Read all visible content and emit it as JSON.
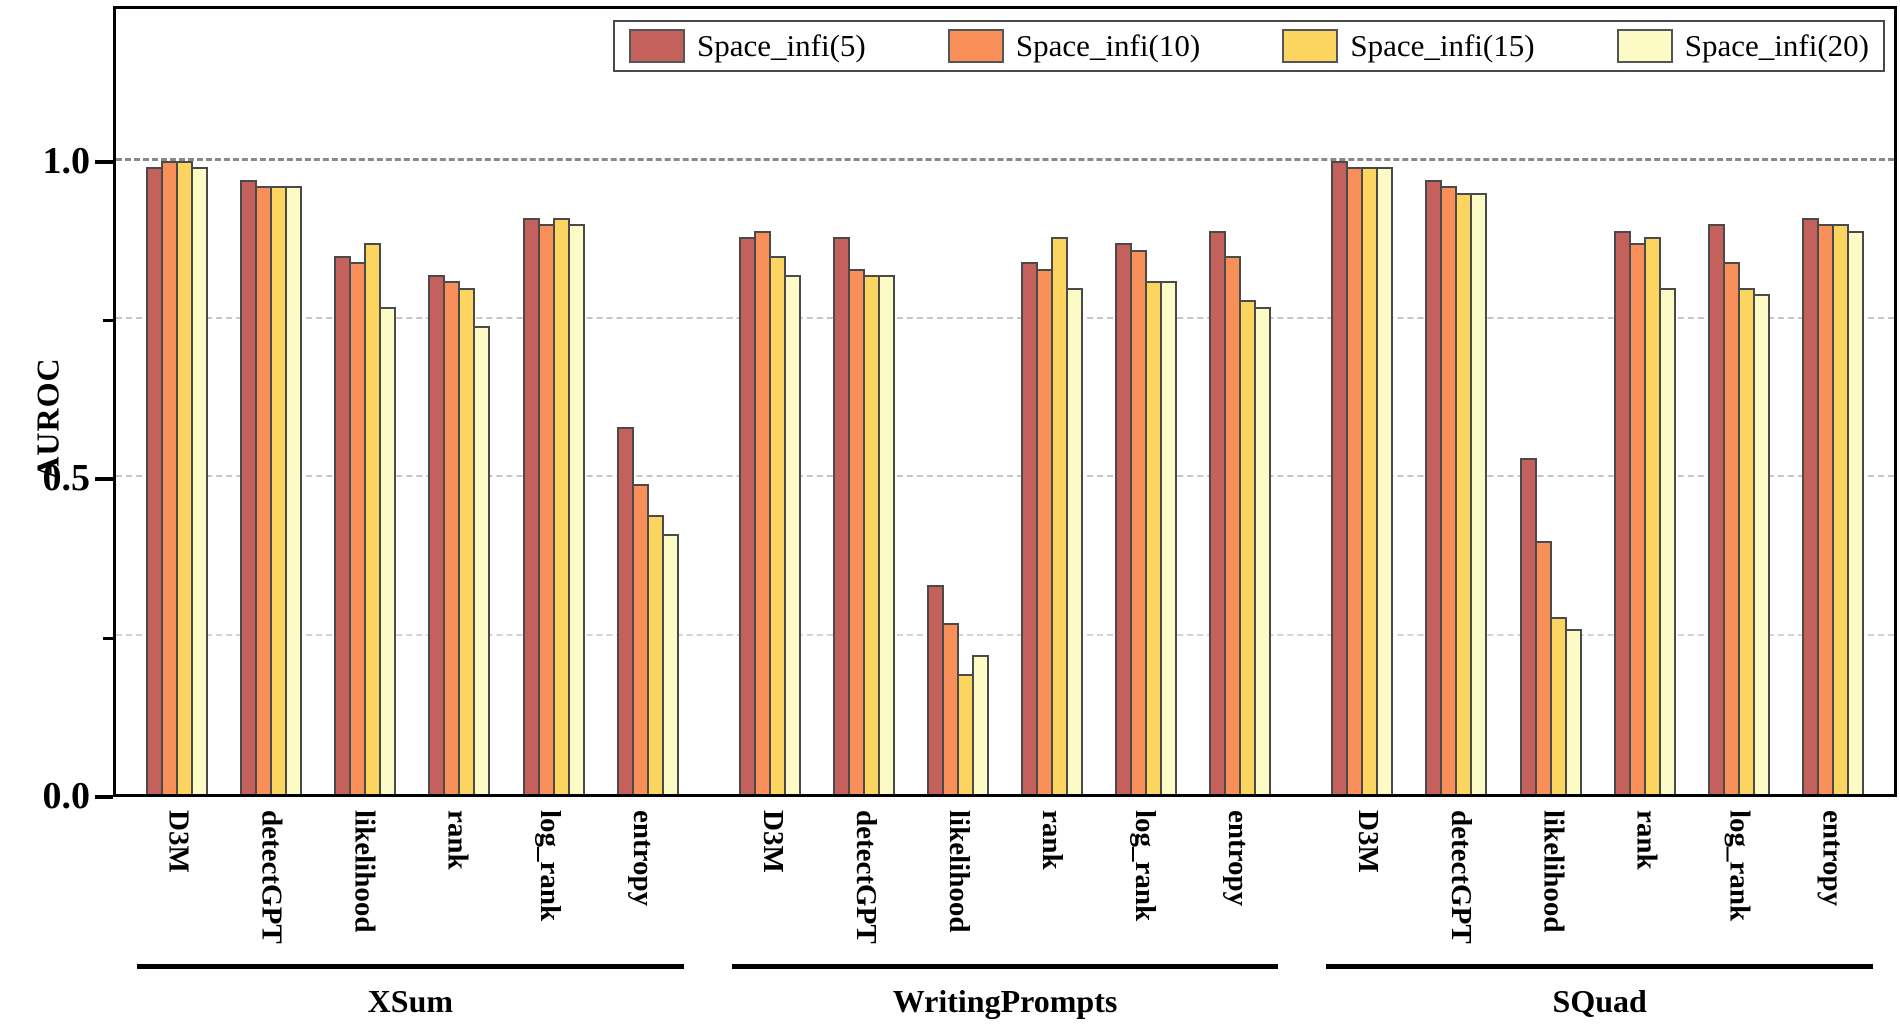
{
  "figure": {
    "y_axis_title": "AUROC"
  },
  "legend": {
    "entries": [
      {
        "label": "Space_infi(5)",
        "color": "#c4615c"
      },
      {
        "label": "Space_infi(10)",
        "color": "#f9905a"
      },
      {
        "label": "Space_infi(15)",
        "color": "#fbd55f"
      },
      {
        "label": "Space_infi(20)",
        "color": "#fcfac5"
      }
    ]
  },
  "chart_data": {
    "type": "bar",
    "title": "",
    "xlabel": "",
    "ylabel": "AUROC",
    "ylim": [
      0,
      1.24
    ],
    "grid": true,
    "gridlines_at": [
      0.25,
      0.5,
      0.75,
      1.0
    ],
    "legend_position": "top",
    "y_major_ticks": [
      {
        "label": "1.0",
        "value": 1.0
      },
      {
        "label": "0.5",
        "value": 0.5
      },
      {
        "label": "0.0",
        "value": 0.0
      }
    ],
    "y_minor_ticks": [
      0.75,
      0.25
    ],
    "categories": [
      "D3M",
      "detectGPT",
      "likelihood",
      "rank",
      "log_rank",
      "entropy"
    ],
    "series_names": [
      "Space_infi(5)",
      "Space_infi(10)",
      "Space_infi(15)",
      "Space_infi(20)"
    ],
    "series_colors": [
      "#c4615c",
      "#f9905a",
      "#fbd55f",
      "#fcfac5"
    ],
    "datasets": [
      {
        "name": "XSum",
        "values": [
          [
            0.99,
            1.0,
            1.0,
            0.99
          ],
          [
            0.97,
            0.96,
            0.96,
            0.96
          ],
          [
            0.85,
            0.84,
            0.87,
            0.77
          ],
          [
            0.82,
            0.81,
            0.8,
            0.74
          ],
          [
            0.91,
            0.9,
            0.91,
            0.9
          ],
          [
            0.58,
            0.49,
            0.44,
            0.41
          ]
        ]
      },
      {
        "name": "WritingPrompts",
        "values": [
          [
            0.88,
            0.89,
            0.85,
            0.82
          ],
          [
            0.88,
            0.83,
            0.82,
            0.82
          ],
          [
            0.33,
            0.27,
            0.19,
            0.22
          ],
          [
            0.84,
            0.83,
            0.88,
            0.8
          ],
          [
            0.87,
            0.86,
            0.81,
            0.81
          ],
          [
            0.89,
            0.85,
            0.78,
            0.77
          ]
        ]
      },
      {
        "name": "SQuad",
        "values": [
          [
            1.0,
            0.99,
            0.99,
            0.99
          ],
          [
            0.97,
            0.96,
            0.95,
            0.95
          ],
          [
            0.53,
            0.4,
            0.28,
            0.26
          ],
          [
            0.89,
            0.87,
            0.88,
            0.8
          ],
          [
            0.9,
            0.84,
            0.8,
            0.79
          ],
          [
            0.91,
            0.9,
            0.9,
            0.89
          ]
        ]
      }
    ]
  }
}
